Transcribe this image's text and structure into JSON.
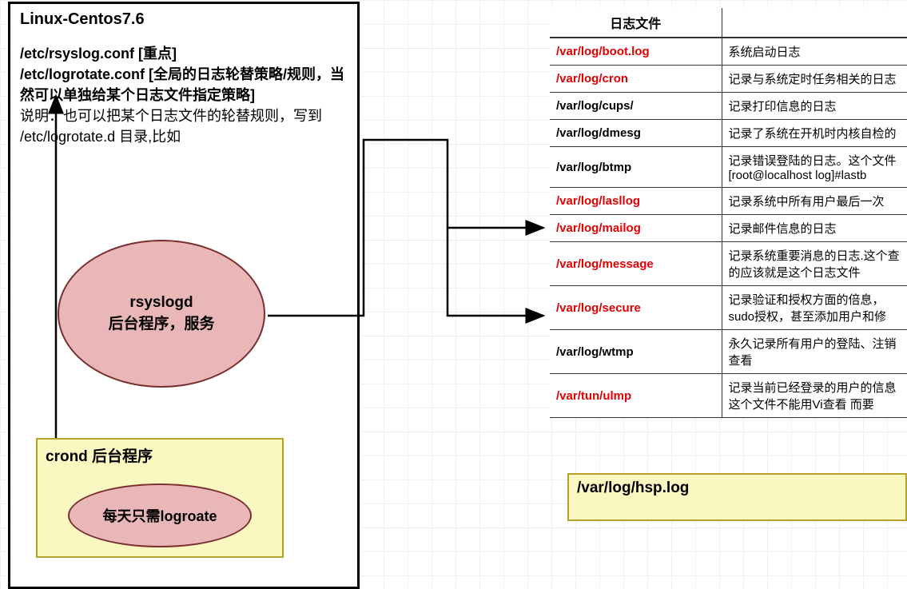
{
  "mainBox": {
    "title": "Linux-Centos7.6",
    "line1": "/etc/rsyslog.conf [重点]",
    "line2": "/etc/logrotate.conf [全局的日志轮替策略/规则，当然可以单独给某个日志文件指定策略]",
    "line3": "说明：也可以把某个日志文件的轮替规则，写到 /etc/logrotate.d 目录,比如"
  },
  "ellipseMain": {
    "l1": "rsyslogd",
    "l2": "后台程序，服务"
  },
  "crond": {
    "title": "crond 后台程序",
    "inner": "每天只需logroate"
  },
  "table": {
    "header0": "日志文件",
    "header1": "",
    "rows": [
      {
        "path": "/var/log/boot.log",
        "red": true,
        "desc": "系统启动日志"
      },
      {
        "path": "/var/log/cron",
        "red": true,
        "desc": "记录与系统定时任务相关的日志"
      },
      {
        "path": "/var/log/cups/",
        "red": false,
        "desc": "记录打印信息的日志"
      },
      {
        "path": "/var/log/dmesg",
        "red": false,
        "desc": "记录了系统在开机时内核自检的"
      },
      {
        "path": "/var/log/btmp",
        "red": false,
        "desc": "记录错误登陆的日志。这个文件 [root@localhost log]#lastb"
      },
      {
        "path": "/var/log/lasllog",
        "red": true,
        "desc": "记录系统中所有用户最后一次"
      },
      {
        "path": "/var/Iog/mailog",
        "red": true,
        "desc": "记录邮件信息的日志"
      },
      {
        "path": "/var/log/message",
        "red": true,
        "desc": "记录系统重要消息的日志.这个查的应该就是这个日志文件"
      },
      {
        "path": "/var/log/secure",
        "red": true,
        "desc": "记录验证和授权方面的倍息，sudo授权，甚至添加用户和修"
      },
      {
        "path": "/var/log/wtmp",
        "red": false,
        "desc": "永久记录所有用户的登陆、注销 查看"
      },
      {
        "path": "/var/tun/ulmp",
        "red": true,
        "desc": "记录当前已经登录的用户的信息 这个文件不能用Vi查看  而要"
      }
    ]
  },
  "hsp": "/var/log/hsp.log",
  "colors": {
    "ellipseFill": "#e9b7b7",
    "ellipseBorder": "#7a2f2f",
    "yellowFill": "#fbf7c0",
    "yellowBorder": "#b5a22a",
    "red": "#e40000",
    "border": "#000000",
    "grid": "#f0f0f0"
  }
}
